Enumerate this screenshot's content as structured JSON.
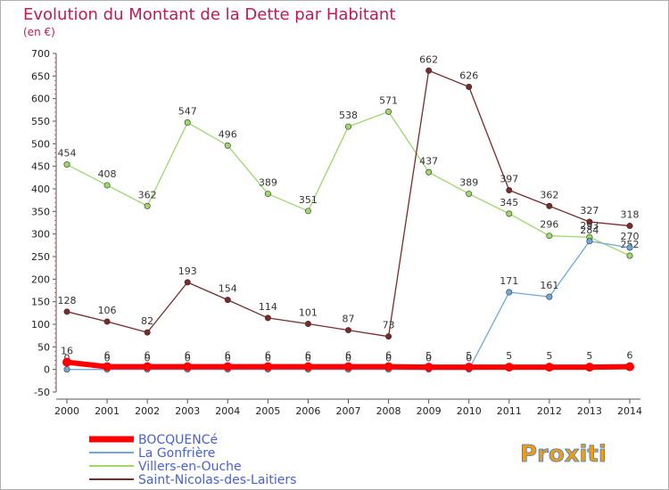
{
  "chart_data": {
    "type": "line",
    "title": "Evolution du Montant de la Dette par Habitant",
    "subtitle": "(en €)",
    "x": [
      "2000",
      "2001",
      "2002",
      "2003",
      "2004",
      "2005",
      "2006",
      "2007",
      "2008",
      "2009",
      "2010",
      "2011",
      "2012",
      "2013",
      "2014"
    ],
    "ylim": [
      -50,
      700
    ],
    "yticks": [
      -50,
      0,
      50,
      100,
      150,
      200,
      250,
      300,
      350,
      400,
      450,
      500,
      550,
      600,
      650,
      700
    ],
    "grid": false,
    "legend_position": "bottom-left",
    "series": [
      {
        "name": "BOCQUENCé",
        "color": "#ff0000",
        "values": [
          16,
          6,
          6,
          6,
          6,
          6,
          6,
          6,
          6,
          5,
          5,
          5,
          5,
          5,
          6
        ],
        "labels": [
          "16",
          "6",
          "6",
          "6",
          "6",
          "6",
          "6",
          "6",
          "6",
          "5",
          "5",
          "5",
          "5",
          "5",
          "6"
        ]
      },
      {
        "name": "La Gonfrière",
        "color": "#6fa8dc",
        "values": [
          0,
          0,
          0,
          0,
          0,
          0,
          0,
          0,
          0,
          0,
          0,
          171,
          161,
          284,
          270
        ],
        "labels": [
          "0",
          "0",
          "0",
          "0",
          "0",
          "0",
          "0",
          "0",
          "0",
          "0",
          "0",
          "171",
          "161",
          "284",
          "270"
        ]
      },
      {
        "name": "Villers-en-Ouche",
        "color": "#9ed86a",
        "values": [
          454,
          408,
          362,
          547,
          496,
          389,
          351,
          538,
          571,
          437,
          389,
          345,
          296,
          293,
          252
        ],
        "labels": [
          "454",
          "408",
          "362",
          "547",
          "496",
          "389",
          "351",
          "538",
          "571",
          "437",
          "389",
          "345",
          "296",
          "293",
          "252"
        ]
      },
      {
        "name": "Saint-Nicolas-des-Laitiers",
        "color": "#7a2a2a",
        "values": [
          128,
          106,
          82,
          193,
          154,
          114,
          101,
          87,
          73,
          662,
          626,
          397,
          362,
          327,
          318
        ],
        "labels": [
          "128",
          "106",
          "82",
          "193",
          "154",
          "114",
          "101",
          "87",
          "73",
          "662",
          "626",
          "397",
          "362",
          "327",
          "318"
        ]
      }
    ]
  },
  "logo": {
    "text": "Proxiti"
  }
}
